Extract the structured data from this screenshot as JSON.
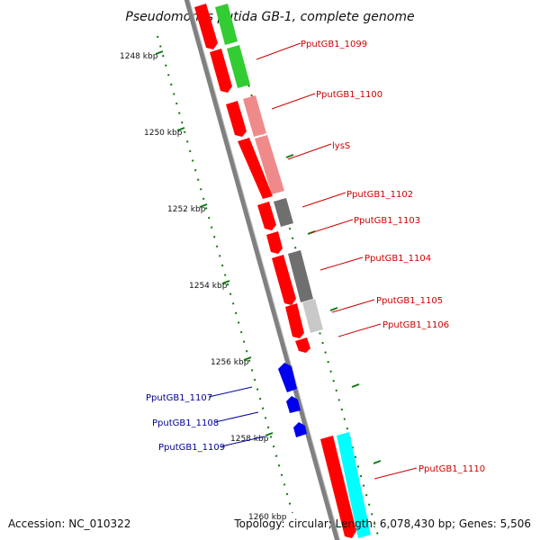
{
  "title": "Pseudomonas putida GB-1, complete genome",
  "footer": {
    "accession": "Accession: NC_010322",
    "summary": "Topology: circular; Length: 6,078,430 bp; Genes: 5,506"
  },
  "colors": {
    "red": "#ff0000",
    "green": "#33cc33",
    "pink": "#f08a8a",
    "dark_gray": "#6f6f6f",
    "light_gray": "#c8c8c8",
    "blue": "#0000ee",
    "cyan": "#00ffff",
    "label_red": "#cc0000",
    "label_blue": "#000099",
    "tick_green": "#117711",
    "backbone": "#808080"
  },
  "ticks": [
    {
      "label": "1248 kbp"
    },
    {
      "label": "1250 kbp"
    },
    {
      "label": "1252 kbp"
    },
    {
      "label": "1254 kbp"
    },
    {
      "label": "1256 kbp"
    },
    {
      "label": "1258 kbp"
    },
    {
      "label": "1260 kbp"
    }
  ],
  "labels_right": [
    {
      "text": "PputGB1_1099"
    },
    {
      "text": "PputGB1_1100"
    },
    {
      "text": "lysS"
    },
    {
      "text": "PputGB1_1102"
    },
    {
      "text": "PputGB1_1103"
    },
    {
      "text": "PputGB1_1104"
    },
    {
      "text": "PputGB1_1105"
    },
    {
      "text": "PputGB1_1106"
    },
    {
      "text": "PputGB1_1110"
    }
  ],
  "labels_left": [
    {
      "text": "PputGB1_1107"
    },
    {
      "text": "PputGB1_1108"
    },
    {
      "text": "PputGB1_1109"
    }
  ]
}
